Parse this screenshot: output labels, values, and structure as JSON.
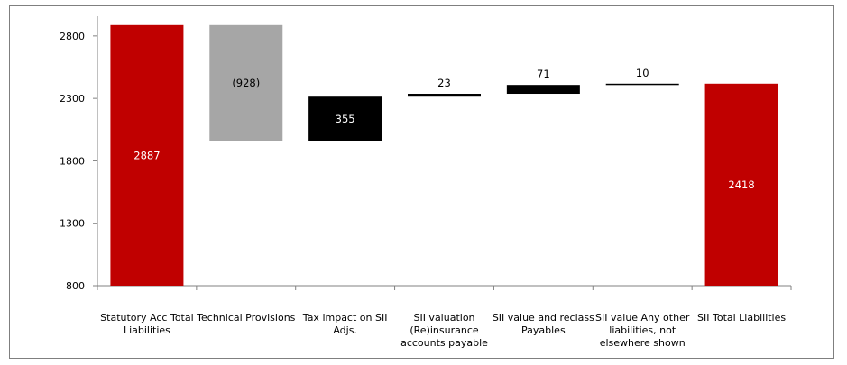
{
  "chart_data": {
    "type": "bar",
    "subtype": "waterfall",
    "title": "",
    "xlabel": "",
    "ylabel": "",
    "ylim": [
      800,
      2900
    ],
    "yticks": [
      800,
      1300,
      1800,
      2300,
      2800
    ],
    "grid": false,
    "legend": "none",
    "categories": [
      [
        "Statutory Acc Total",
        "Liabilities"
      ],
      [
        "Technical Provisions"
      ],
      [
        "Tax impact on SII",
        "Adjs."
      ],
      [
        "SII valuation",
        "(Re)insurance",
        "accounts payable"
      ],
      [
        "SII value and reclass",
        "Payables"
      ],
      [
        "SII value Any other",
        "liabilities, not",
        "elsewhere shown"
      ],
      [
        "SII Total Liabilities"
      ]
    ],
    "bars": [
      {
        "kind": "total",
        "start": 0,
        "end": 2887,
        "label": "2887",
        "color": "#c00000",
        "label_color": "#ffffff"
      },
      {
        "kind": "delta",
        "start": 2887,
        "end": 1959,
        "label": "(928)",
        "color": "#a6a6a6",
        "label_color": "#000000"
      },
      {
        "kind": "delta",
        "start": 1959,
        "end": 2314,
        "label": "355",
        "color": "#000000",
        "label_color": "#ffffff"
      },
      {
        "kind": "delta",
        "start": 2314,
        "end": 2337,
        "label": "23",
        "color": "#000000",
        "label_color": "#000000"
      },
      {
        "kind": "delta",
        "start": 2337,
        "end": 2408,
        "label": "71",
        "color": "#000000",
        "label_color": "#000000"
      },
      {
        "kind": "delta",
        "start": 2408,
        "end": 2418,
        "label": "10",
        "color": "#000000",
        "label_color": "#000000"
      },
      {
        "kind": "total",
        "start": 0,
        "end": 2418,
        "label": "2418",
        "color": "#c00000",
        "label_color": "#ffffff"
      }
    ]
  }
}
